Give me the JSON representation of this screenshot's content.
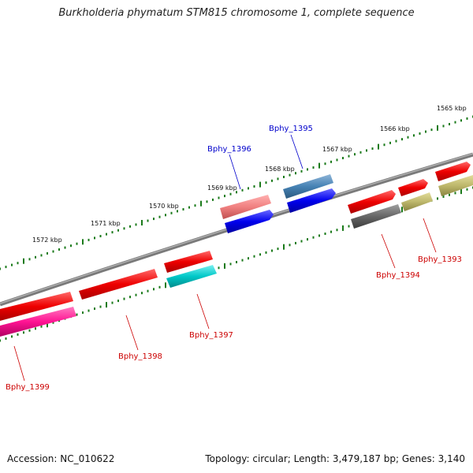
{
  "title": "Burkholderia phymatum STM815 chromosome 1, complete sequence",
  "footer": {
    "accession": "Accession: NC_010622",
    "topology": "Topology: circular; Length: 3,479,187 bp; Genes: 3,140"
  },
  "scale_markers": [
    {
      "label": "1565 kbp"
    },
    {
      "label": "1566 kbp"
    },
    {
      "label": "1567 kbp"
    },
    {
      "label": "1568 kbp"
    },
    {
      "label": "1569 kbp"
    },
    {
      "label": "1570 kbp"
    },
    {
      "label": "1571 kbp"
    },
    {
      "label": "1572 kbp"
    }
  ],
  "genes": [
    {
      "label": "Bphy_1393",
      "label_color": "#cc0000"
    },
    {
      "label": "Bphy_1394",
      "label_color": "#cc0000"
    },
    {
      "label": "Bphy_1395",
      "label_color": "#0000cc"
    },
    {
      "label": "Bphy_1396",
      "label_color": "#0000cc"
    },
    {
      "label": "Bphy_1397",
      "label_color": "#cc0000"
    },
    {
      "label": "Bphy_1398",
      "label_color": "#cc0000"
    },
    {
      "label": "Bphy_1399",
      "label_color": "#cc0000"
    }
  ],
  "colors": {
    "backbone": "#808080",
    "tick": "#1a7a1a",
    "red": "#ee0000",
    "blue": "#0000ee",
    "steelblue": "#4682b4",
    "salmon": "#f08080",
    "cyan": "#00c8c8",
    "pink": "#ff1493",
    "gray": "#666666",
    "khaki": "#bdb76b"
  }
}
